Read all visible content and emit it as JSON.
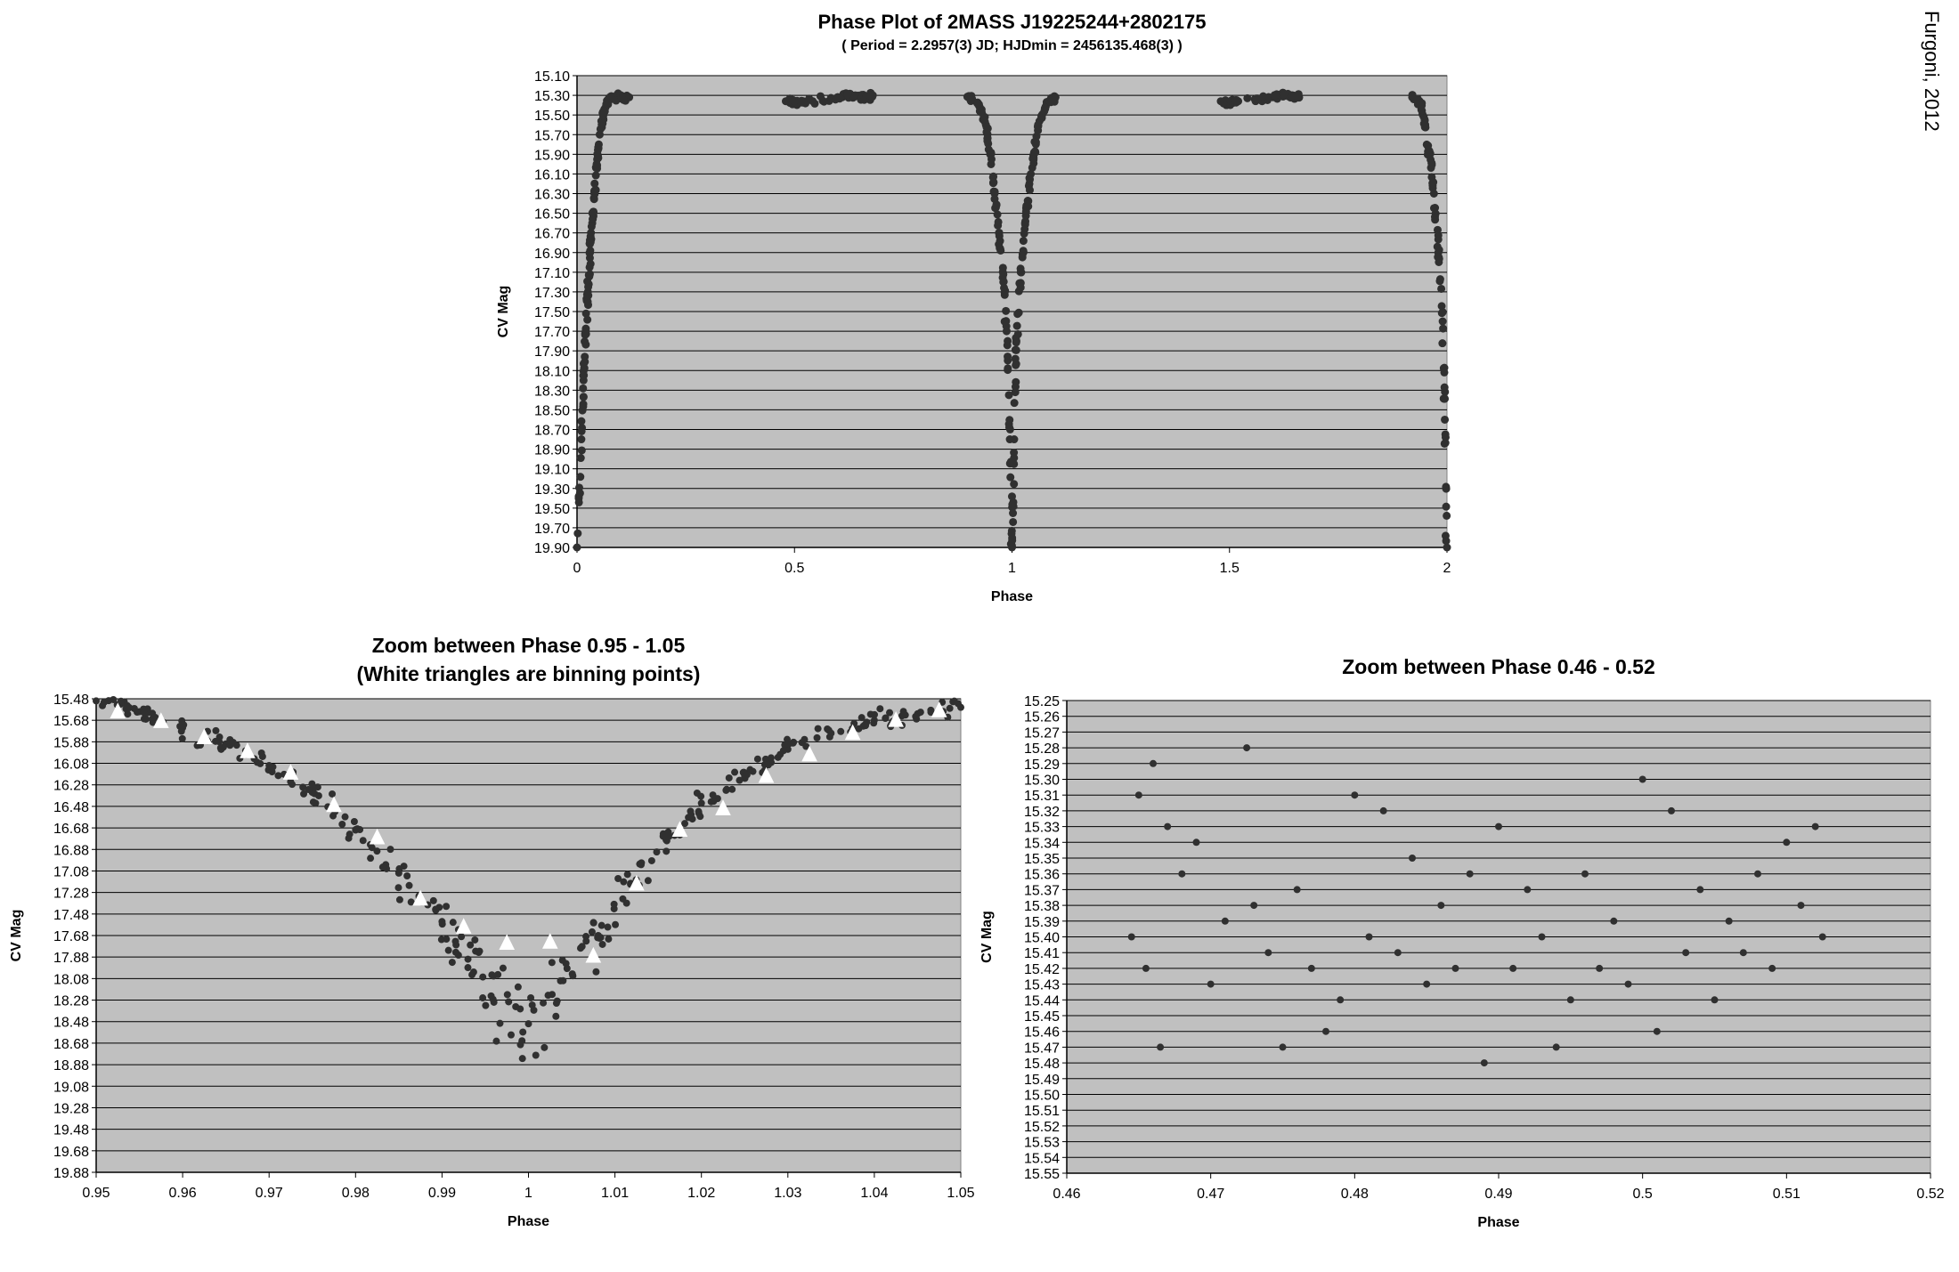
{
  "credit": "Furgoni, 2012",
  "chart_data": [
    {
      "type": "scatter",
      "title": "Phase Plot of 2MASS J19225244+2802175",
      "subtitle": "( Period = 2.2957(3) JD; HJDmin = 2456135.468(3) )",
      "xlabel": "Phase",
      "ylabel": "CV Mag",
      "xlim": [
        0,
        2
      ],
      "ylim": [
        15.1,
        19.9
      ],
      "y_inverted": true,
      "grid": true,
      "xticks": [
        "0",
        "0.5",
        "1",
        "1.5",
        "2"
      ],
      "yticks": [
        "15.10",
        "15.30",
        "15.50",
        "15.70",
        "15.90",
        "16.10",
        "16.30",
        "16.50",
        "16.70",
        "16.90",
        "17.10",
        "17.30",
        "17.50",
        "17.70",
        "17.90",
        "18.10",
        "18.30",
        "18.50",
        "18.70",
        "18.90",
        "19.10",
        "19.30",
        "19.50",
        "19.70",
        "19.90"
      ],
      "series": [
        {
          "color": "#303030",
          "x": [
            0,
            0.01,
            0.015,
            0.02,
            0.025,
            0.03,
            0.035,
            0.04,
            0.045,
            0.05,
            0.06,
            0.07,
            0.08,
            0.1,
            0.12,
            0.48,
            0.5,
            0.52,
            0.6,
            0.62,
            0.64,
            0.66,
            0.68,
            0.9,
            0.92,
            0.94,
            0.95,
            0.96,
            0.97,
            0.98,
            0.99,
            0.995,
            1.0,
            1.005,
            1.01,
            1.02,
            1.03,
            1.04,
            1.05,
            1.06,
            1.08,
            1.1,
            1.48,
            1.5,
            1.52,
            1.6,
            1.62,
            1.64,
            1.66,
            1.92,
            1.94,
            1.95,
            1.96,
            1.97,
            1.98,
            1.99,
            1.995,
            2.0
          ],
          "y": [
            19.9,
            18.8,
            18.2,
            17.7,
            17.3,
            16.9,
            16.6,
            16.3,
            16.0,
            15.8,
            15.5,
            15.38,
            15.32,
            15.32,
            15.32,
            15.36,
            15.38,
            15.36,
            15.32,
            15.3,
            15.3,
            15.32,
            15.3,
            15.32,
            15.38,
            15.6,
            15.9,
            16.3,
            16.7,
            17.2,
            17.8,
            18.8,
            19.9,
            18.8,
            17.8,
            17.1,
            16.6,
            16.2,
            15.9,
            15.6,
            15.38,
            15.32,
            15.36,
            15.38,
            15.36,
            15.32,
            15.3,
            15.3,
            15.32,
            15.32,
            15.38,
            15.6,
            15.9,
            16.3,
            16.9,
            17.6,
            18.6,
            19.9
          ]
        }
      ]
    },
    {
      "type": "scatter",
      "title": "Zoom between Phase 0.95 - 1.05",
      "subtitle": "(White triangles are binning points)",
      "xlabel": "Phase",
      "ylabel": "CV Mag",
      "xlim": [
        0.95,
        1.05
      ],
      "ylim": [
        15.48,
        19.88
      ],
      "y_inverted": true,
      "grid": true,
      "xticks": [
        "0.95",
        "0.96",
        "0.97",
        "0.98",
        "0.99",
        "1",
        "1.01",
        "1.02",
        "1.03",
        "1.04",
        "1.05"
      ],
      "yticks": [
        "15.48",
        "15.68",
        "15.88",
        "16.08",
        "16.28",
        "16.48",
        "16.68",
        "16.88",
        "17.08",
        "17.28",
        "17.48",
        "17.68",
        "17.88",
        "18.08",
        "18.28",
        "18.48",
        "18.68",
        "18.88",
        "19.08",
        "19.28",
        "19.48",
        "19.68",
        "19.88"
      ],
      "series": [
        {
          "marker": "circle",
          "color": "#303030",
          "x": [
            0.95,
            0.955,
            0.96,
            0.965,
            0.97,
            0.975,
            0.98,
            0.985,
            0.99,
            0.993,
            0.996,
            1.0,
            1.004,
            1.008,
            1.012,
            1.016,
            1.02,
            1.025,
            1.03,
            1.035,
            1.04,
            1.045,
            1.05
          ],
          "y": [
            15.5,
            15.6,
            15.75,
            15.9,
            16.1,
            16.35,
            16.7,
            17.1,
            17.55,
            17.9,
            18.3,
            18.5,
            18.1,
            17.7,
            17.2,
            16.8,
            16.45,
            16.2,
            15.95,
            15.8,
            15.68,
            15.62,
            15.56
          ]
        },
        {
          "name": "binning points",
          "marker": "triangle",
          "color": "#ffffff",
          "x": [
            0.9525,
            0.9575,
            0.9625,
            0.9675,
            0.9725,
            0.9775,
            0.9825,
            0.9875,
            0.9925,
            0.9975,
            1.0025,
            1.0075,
            1.0125,
            1.0175,
            1.0225,
            1.0275,
            1.0325,
            1.0375,
            1.0425,
            1.0475
          ],
          "y": [
            15.6,
            15.69,
            15.84,
            15.97,
            16.17,
            16.47,
            16.77,
            17.34,
            17.6,
            17.75,
            17.74,
            17.87,
            17.2,
            16.7,
            16.5,
            16.2,
            16.0,
            15.8,
            15.68,
            15.59
          ]
        }
      ]
    },
    {
      "type": "scatter",
      "title": "Zoom between Phase 0.46 - 0.52",
      "xlabel": "Phase",
      "ylabel": "CV Mag",
      "xlim": [
        0.46,
        0.52
      ],
      "ylim": [
        15.25,
        15.55
      ],
      "y_inverted": true,
      "grid": true,
      "xticks": [
        "0.46",
        "0.47",
        "0.48",
        "0.49",
        "0.5",
        "0.51",
        "0.52"
      ],
      "yticks": [
        "15.25",
        "15.26",
        "15.27",
        "15.28",
        "15.29",
        "15.30",
        "15.31",
        "15.32",
        "15.33",
        "15.34",
        "15.35",
        "15.36",
        "15.37",
        "15.38",
        "15.39",
        "15.40",
        "15.41",
        "15.42",
        "15.43",
        "15.44",
        "15.45",
        "15.46",
        "15.47",
        "15.48",
        "15.49",
        "15.50",
        "15.51",
        "15.52",
        "15.53",
        "15.54",
        "15.55"
      ],
      "series": [
        {
          "marker": "circle",
          "color": "#303030",
          "x": [
            0.4645,
            0.465,
            0.4655,
            0.466,
            0.4665,
            0.467,
            0.468,
            0.469,
            0.47,
            0.471,
            0.4725,
            0.473,
            0.474,
            0.475,
            0.476,
            0.477,
            0.478,
            0.479,
            0.48,
            0.481,
            0.482,
            0.483,
            0.484,
            0.485,
            0.486,
            0.487,
            0.488,
            0.489,
            0.49,
            0.491,
            0.492,
            0.493,
            0.494,
            0.495,
            0.496,
            0.497,
            0.498,
            0.499,
            0.5,
            0.501,
            0.502,
            0.503,
            0.504,
            0.505,
            0.506,
            0.507,
            0.508,
            0.509,
            0.51,
            0.511,
            0.512,
            0.5125
          ],
          "y": [
            15.4,
            15.31,
            15.42,
            15.29,
            15.47,
            15.33,
            15.36,
            15.34,
            15.43,
            15.39,
            15.28,
            15.38,
            15.41,
            15.47,
            15.37,
            15.42,
            15.46,
            15.44,
            15.31,
            15.4,
            15.32,
            15.41,
            15.35,
            15.43,
            15.38,
            15.42,
            15.36,
            15.48,
            15.33,
            15.42,
            15.37,
            15.4,
            15.47,
            15.44,
            15.36,
            15.42,
            15.39,
            15.43,
            15.3,
            15.46,
            15.32,
            15.41,
            15.37,
            15.44,
            15.39,
            15.41,
            15.36,
            15.42,
            15.34,
            15.38,
            15.33,
            15.4
          ]
        }
      ]
    }
  ]
}
